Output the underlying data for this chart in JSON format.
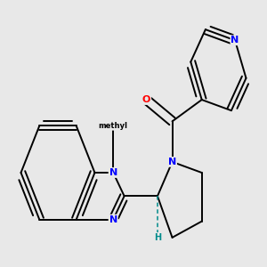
{
  "background_color": "#e8e8e8",
  "atom_colors": {
    "C": "#000000",
    "N": "#0000ff",
    "O": "#ff0000",
    "H": "#008b8b"
  },
  "bond_color": "#000000",
  "bond_width": 1.4,
  "figsize": [
    3.0,
    3.0
  ],
  "dpi": 100
}
